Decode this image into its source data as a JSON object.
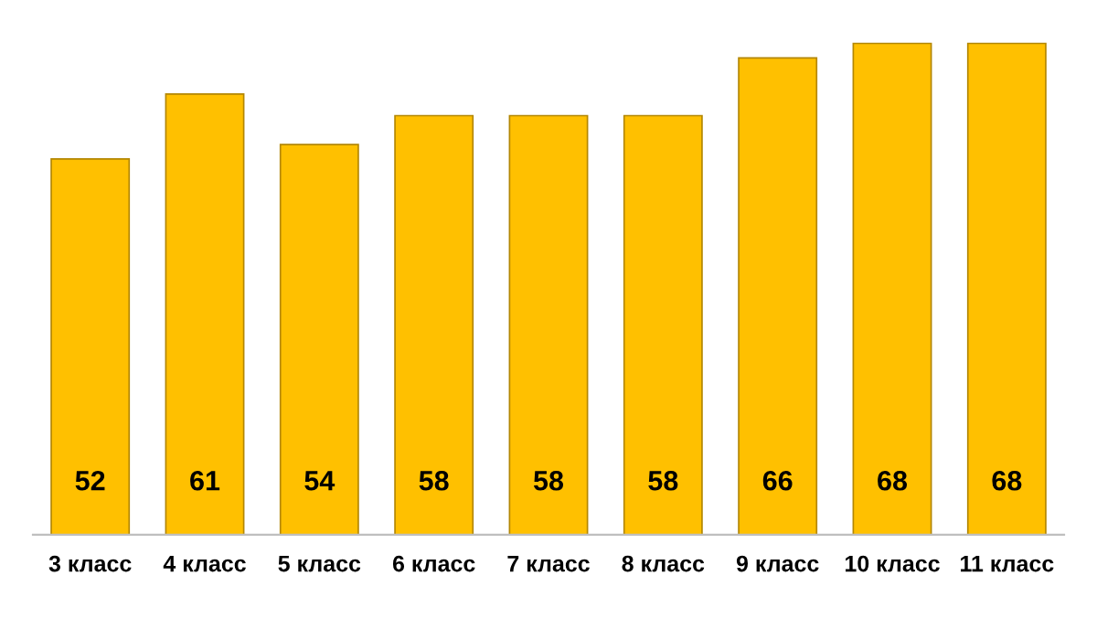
{
  "chart_data": {
    "type": "bar",
    "categories": [
      "3 класс",
      "4 класс",
      "5 класс",
      "6 класс",
      "7 класс",
      "8 класс",
      "9 класс",
      "10 класс",
      "11 класс"
    ],
    "values": [
      52,
      61,
      54,
      58,
      58,
      58,
      66,
      68,
      68
    ],
    "color": "#ffc000",
    "data_labels": true
  }
}
